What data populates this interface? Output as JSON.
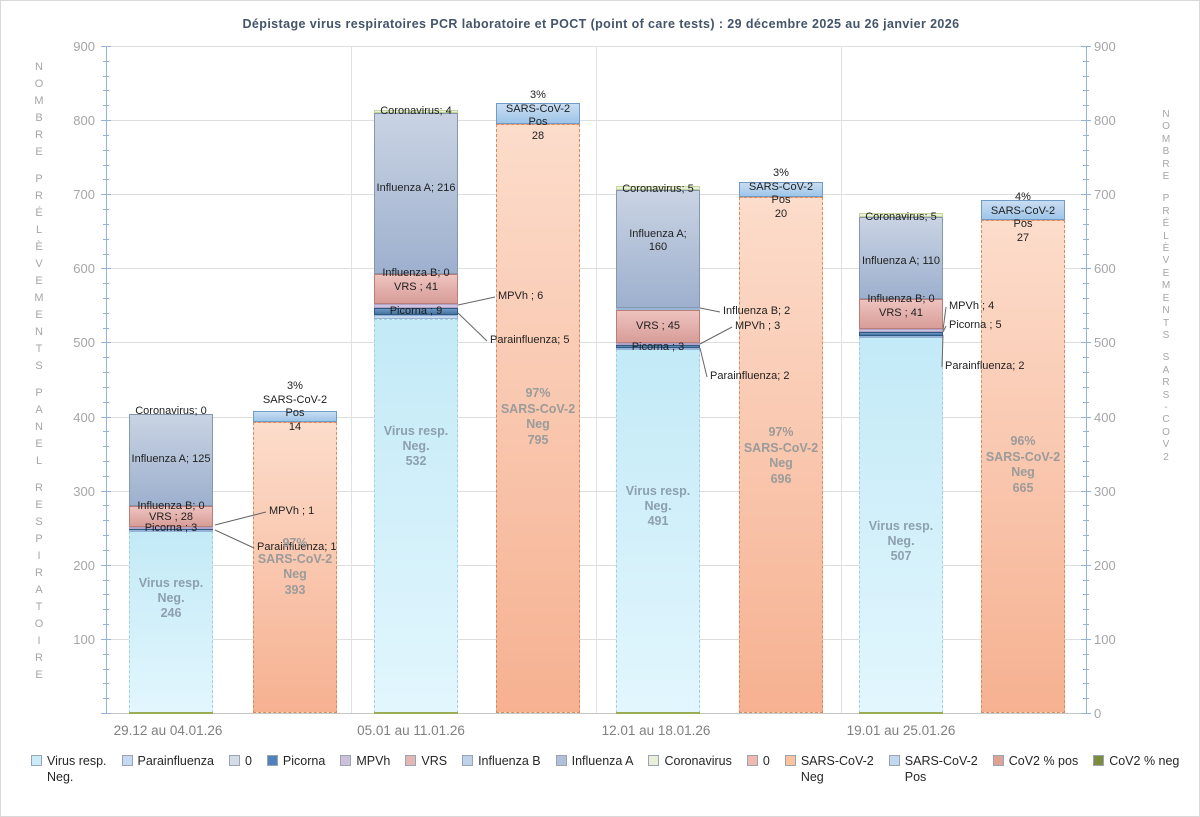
{
  "title": "Dépistage  virus respiratoires  PCR laboratoire  et POCT (point of care tests) : 29 décembre  2025 au  26 janvier  2026",
  "chart_data": {
    "type": "bar",
    "stacking": "stacked",
    "title": "Dépistage virus respiratoires PCR laboratoire et POCT (point of care tests) : 29 décembre 2025 au 26 janvier 2026",
    "axes": {
      "left_label": "NOMBRE PRÉLÈVEMENTS PANEL RESPIRATOIRE",
      "right_label": "NOMBRE PRÉLÈVEMENTS SARS-COV2",
      "ymin": 0,
      "ymax": 900,
      "tick_step": 100,
      "left_tick_labels": [
        900,
        800,
        700,
        600,
        500,
        400,
        300,
        200,
        100
      ],
      "right_tick_labels": [
        900,
        800,
        700,
        600,
        500,
        400,
        300,
        200,
        100,
        0
      ],
      "grid": true
    },
    "categories": [
      "29.12 au 04.01.26",
      "05.01 au 11.01.26",
      "12.01 au 18.01.26",
      "19.01 au 25.01.26"
    ],
    "resp_stack_order": [
      "virus_resp_neg",
      "parainfluenza",
      "picorna",
      "mpvh",
      "vrs",
      "influenza_b",
      "influenza_a",
      "coronavirus"
    ],
    "groups": [
      {
        "category": "29.12 au 04.01.26",
        "resp": {
          "virus_resp_neg": 246,
          "parainfluenza": 1,
          "picorna": 3,
          "mpvh": 1,
          "vrs": 28,
          "influenza_b": 0,
          "influenza_a": 125,
          "coronavirus": 0
        },
        "resp_neg_label": [
          "Virus resp.",
          "Neg.",
          "246"
        ],
        "labels": {
          "coronavirus": "Coronavirus; 0",
          "influenza_a": "Influenza A; 125",
          "influenza_b": "Influenza B; 0",
          "vrs": "VRS  ; 28",
          "picorna": "Picorna ; 3",
          "mpvh": "MPVh ; 1",
          "parainfluenza": "Parainfluenza; 1"
        },
        "sars": {
          "neg": 393,
          "pos": 14
        },
        "sars_pos_label": [
          "3%",
          "SARS-CoV-2",
          "Pos",
          "14"
        ],
        "sars_neg_label": [
          "97%",
          "SARS-CoV-2",
          "Neg",
          "393"
        ]
      },
      {
        "category": "05.01 au 11.01.26",
        "resp": {
          "virus_resp_neg": 532,
          "parainfluenza": 5,
          "picorna": 9,
          "mpvh": 6,
          "vrs": 41,
          "influenza_b": 0,
          "influenza_a": 216,
          "coronavirus": 4
        },
        "resp_neg_label": [
          "Virus resp.",
          "Neg.",
          "532"
        ],
        "labels": {
          "coronavirus": "Coronavirus; 4",
          "influenza_a": "Influenza A; 216",
          "influenza_b": "Influenza B; 0",
          "vrs": "VRS  ; 41",
          "picorna": "Picorna ; 9",
          "mpvh": "MPVh ; 6",
          "parainfluenza": "Parainfluenza; 5"
        },
        "sars": {
          "neg": 795,
          "pos": 28
        },
        "sars_pos_label": [
          "3%",
          "SARS-CoV-2",
          "Pos",
          "28"
        ],
        "sars_neg_label": [
          "97%",
          "SARS-CoV-2",
          "Neg",
          "795"
        ]
      },
      {
        "category": "12.01 au 18.01.26",
        "resp": {
          "virus_resp_neg": 491,
          "parainfluenza": 2,
          "picorna": 3,
          "mpvh": 3,
          "vrs": 45,
          "influenza_b": 2,
          "influenza_a": 160,
          "coronavirus": 5
        },
        "resp_neg_label": [
          "Virus resp.",
          "Neg.",
          "491"
        ],
        "labels": {
          "coronavirus": "Coronavirus; 5",
          "influenza_a": "Influenza A;\n160",
          "influenza_b": "Influenza B; 2",
          "vrs": "VRS  ; 45",
          "picorna": "Picorna ; 3",
          "mpvh": "MPVh ; 3",
          "parainfluenza": "Parainfluenza; 2"
        },
        "sars": {
          "neg": 696,
          "pos": 20
        },
        "sars_pos_label": [
          "3%",
          "SARS-CoV-2",
          "Pos",
          "20"
        ],
        "sars_neg_label": [
          "97%",
          "SARS-CoV-2",
          "Neg",
          "696"
        ]
      },
      {
        "category": "19.01 au 25.01.26",
        "resp": {
          "virus_resp_neg": 507,
          "parainfluenza": 2,
          "picorna": 5,
          "mpvh": 4,
          "vrs": 41,
          "influenza_b": 0,
          "influenza_a": 110,
          "coronavirus": 5
        },
        "resp_neg_label": [
          "Virus resp.",
          "Neg.",
          "507"
        ],
        "labels": {
          "coronavirus": "Coronavirus; 5",
          "influenza_a": "Influenza A; 110",
          "influenza_b": "Influenza B; 0",
          "vrs": "VRS  ; 41",
          "picorna": "Picorna ; 5",
          "mpvh": "MPVh ; 4",
          "parainfluenza": "Parainfluenza; 2"
        },
        "sars": {
          "neg": 665,
          "pos": 27
        },
        "sars_pos_label": [
          "4%",
          "SARS-CoV-2",
          "Pos",
          "27"
        ],
        "sars_neg_label": [
          "96%",
          "SARS-CoV-2",
          "Neg",
          "665"
        ]
      }
    ],
    "series_colors": {
      "virus_resp_neg": {
        "top": "#c3eaf7",
        "bottom": "#e2f6fd",
        "border": "#a3cfe0"
      },
      "parainfluenza": {
        "top": "#c6d9f1",
        "bottom": "#c6d9f1",
        "border": "#95b3d7"
      },
      "picorna": {
        "top": "#6f97c4",
        "bottom": "#46749f",
        "border": "#2f5a84"
      },
      "mpvh": {
        "top": "#cfc4dd",
        "bottom": "#cfc4dd",
        "border": "#b2a2c7"
      },
      "vrs": {
        "top": "#eec3bf",
        "bottom": "#d89d98",
        "border": "#b97e7a"
      },
      "influenza_b": {
        "top": "#bdd4ea",
        "bottom": "#bdd4ea",
        "border": "#9ab7d6"
      },
      "influenza_a": {
        "top": "#c9d3e3",
        "bottom": "#9db0ce",
        "border": "#8496b0"
      },
      "coronavirus": {
        "top": "#eaf0da",
        "bottom": "#eaf0da",
        "border": "#c3d69b"
      },
      "sars_neg": {
        "top": "#fcdccb",
        "bottom": "#f6b191",
        "border": "#d98d5f"
      },
      "sars_pos": {
        "top": "#c9ddf2",
        "bottom": "#9ec5e8",
        "border": "#6f9bc8"
      }
    },
    "label_colors": {
      "resp_neg_text": "#8da0ae",
      "sars_neg_text": "#9b9b9b",
      "segment_text": "#1f1f1f"
    },
    "legend": [
      {
        "label": "Virus resp.\nNeg.",
        "color": "#c9ecf8"
      },
      {
        "label": "Parainfluenza",
        "color": "#c6d9f1"
      },
      {
        "label": "0",
        "color": "#d6dce6"
      },
      {
        "label": "Picorna",
        "color": "#4f81bd"
      },
      {
        "label": "MPVh",
        "color": "#ccc0da"
      },
      {
        "label": "VRS",
        "color": "#e2b8b5"
      },
      {
        "label": "Influenza B",
        "color": "#bdd3ea"
      },
      {
        "label": "Influenza A",
        "color": "#b0c0d8"
      },
      {
        "label": "Coronavirus",
        "color": "#e9efd8"
      },
      {
        "label": "0",
        "color": "#f1b9ae"
      },
      {
        "label": "SARS-CoV-2\nNeg",
        "color": "#fbc39c"
      },
      {
        "label": "SARS-CoV-2\nPos",
        "color": "#c3d8f0"
      },
      {
        "label": "CoV2 % pos",
        "color": "#dda496"
      },
      {
        "label": "CoV2 % neg",
        "color": "#7d8b40"
      }
    ]
  }
}
